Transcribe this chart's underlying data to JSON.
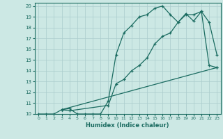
{
  "title": "",
  "xlabel": "Humidex (Indice chaleur)",
  "background_color": "#cce8e4",
  "grid_color": "#aacccc",
  "line_color": "#1a6b60",
  "xlim": [
    -0.5,
    23.5
  ],
  "ylim": [
    10,
    20.3
  ],
  "xticks": [
    0,
    1,
    2,
    3,
    4,
    5,
    6,
    7,
    8,
    9,
    10,
    11,
    12,
    13,
    14,
    15,
    16,
    17,
    18,
    19,
    20,
    21,
    22,
    23
  ],
  "yticks": [
    10,
    11,
    12,
    13,
    14,
    15,
    16,
    17,
    18,
    19,
    20
  ],
  "line1_x": [
    0,
    1,
    2,
    3,
    4,
    5,
    6,
    7,
    8,
    9,
    10,
    11,
    12,
    13,
    14,
    15,
    16,
    17,
    18,
    19,
    20,
    21,
    22,
    23
  ],
  "line1_y": [
    10,
    10,
    10,
    10.4,
    10.5,
    10,
    10,
    10,
    10,
    11.2,
    15.5,
    17.5,
    18.2,
    19,
    19.2,
    19.8,
    20,
    19.2,
    18.5,
    19.3,
    18.6,
    19.5,
    14.5,
    14.3
  ],
  "line2_x": [
    3,
    4,
    9,
    10,
    11,
    12,
    13,
    14,
    15,
    16,
    17,
    18,
    19,
    20,
    21,
    22,
    23
  ],
  "line2_y": [
    10.4,
    10.3,
    10.8,
    12.8,
    13.2,
    14.0,
    14.5,
    15.2,
    16.5,
    17.2,
    17.5,
    18.5,
    19.2,
    19.2,
    19.5,
    18.5,
    15.5
  ],
  "line3_x": [
    3,
    23
  ],
  "line3_y": [
    10.4,
    14.3
  ]
}
